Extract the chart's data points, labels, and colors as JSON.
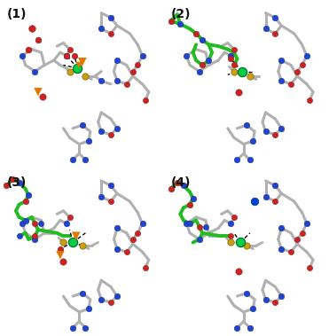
{
  "figsize": [
    3.71,
    3.79
  ],
  "dpi": 100,
  "bg_color": "#ffffff",
  "panel_labels": [
    "(1)",
    "(2)",
    "(3)",
    "(4)"
  ],
  "label_fontsize": 10,
  "label_color": "#111111",
  "border_lw": 0.8,
  "border_color": "#dddddd",
  "atom_colors": {
    "C_gray": "#b0b0b0",
    "C_gray_dark": "#888888",
    "C_green": "#22bb22",
    "N_blue": "#2244cc",
    "O_red": "#cc2222",
    "S_yellow": "#c8a010",
    "Zn_green": "#00cc44",
    "P_orange": "#e07800",
    "water_red": "#dd2222",
    "Na_blue": "#0044cc"
  },
  "stick_lw_gray": 2.2,
  "stick_lw_green": 2.8,
  "dashed_lw": 1.0,
  "dashed_color": "#000000"
}
